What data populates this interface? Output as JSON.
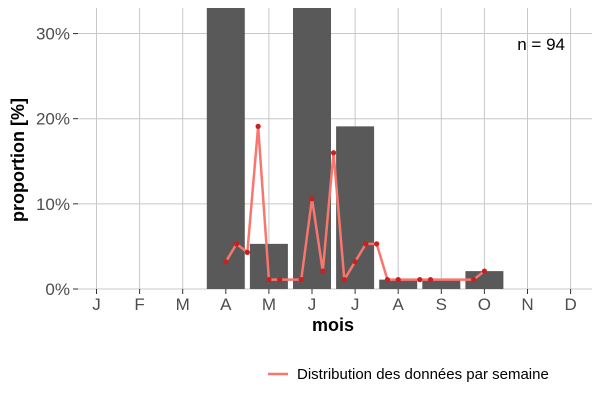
{
  "chart_data": {
    "type": "bar",
    "title": "",
    "xlabel": "mois",
    "ylabel": "proportion [%]",
    "ylim": [
      0,
      33
    ],
    "y_ticks": [
      0,
      10,
      20,
      30
    ],
    "y_tick_labels": [
      "0%",
      "10%",
      "20%",
      "30%"
    ],
    "categories": [
      "J",
      "F",
      "M",
      "A",
      "M",
      "J",
      "J",
      "A",
      "S",
      "O",
      "N",
      "D"
    ],
    "values": [
      0,
      0,
      0,
      33,
      5.3,
      33,
      19.1,
      1.1,
      1.1,
      2.1,
      0,
      0
    ],
    "bar_color": "#595959",
    "grid": true,
    "annotation": "n = 94",
    "series": [
      {
        "name": "Distribution des données par semaine",
        "type": "line",
        "color": "#f8766d",
        "point_color": "#cc1f1f",
        "x": [
          3.0,
          3.25,
          3.5,
          3.75,
          4.0,
          4.25,
          4.75,
          5.0,
          5.25,
          5.5,
          5.75,
          6.0,
          6.25,
          6.5,
          6.75,
          7.0,
          7.5,
          7.75,
          8.75,
          9.0
        ],
        "values": [
          3.2,
          5.3,
          4.3,
          19.1,
          1.1,
          1.1,
          1.1,
          10.6,
          2.1,
          16.0,
          1.1,
          3.2,
          5.3,
          5.3,
          1.1,
          1.1,
          1.1,
          1.1,
          1.1,
          2.1
        ]
      }
    ],
    "legend": {
      "position": "bottom-right",
      "label": "Distribution des données par semaine"
    }
  }
}
